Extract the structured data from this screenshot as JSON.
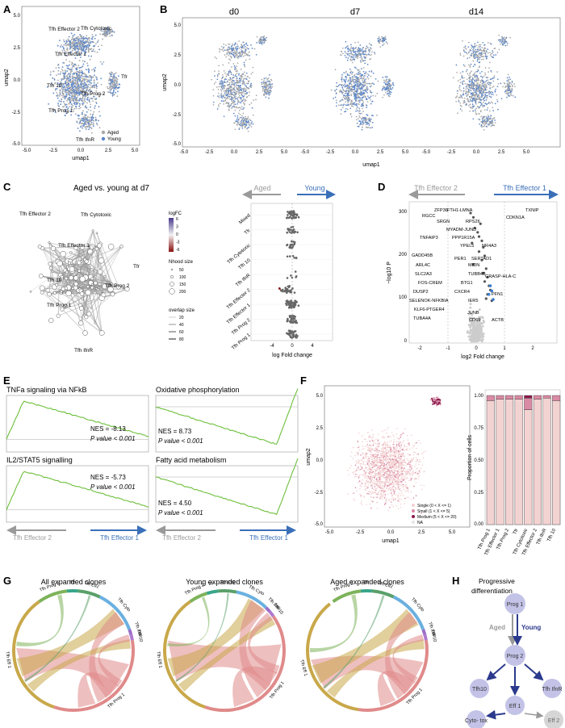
{
  "panels": {
    "A": {
      "letter": "A",
      "xlabel": "umap1",
      "ylabel": "umap2",
      "clusters": [
        "Tfh Effector 2",
        "Tfh Cytotoxic",
        "Tfh Effector 1",
        "Tfr",
        "Tfh 10",
        "Tfh Prog 2",
        "Tfh Prog 1",
        "Tfh IfnR"
      ],
      "legend": [
        {
          "label": "Aged",
          "color": "#a7a7a7"
        },
        {
          "label": "Young",
          "color": "#5b86c9"
        }
      ],
      "xticks": [
        "-5.0",
        "-2.5",
        "0.0",
        "2.5",
        "5.0"
      ],
      "yticks": [
        "5.0",
        "2.5",
        "0.0",
        "-2.5",
        "-5.0"
      ]
    },
    "B": {
      "letter": "B",
      "titles": [
        "d0",
        "d7",
        "d14"
      ],
      "xlabel": "umap1",
      "ylabel": "umap2",
      "xticks": [
        "-5.0",
        "-2.5",
        "0.0",
        "2.5",
        "5.0"
      ],
      "yticks": [
        "5.0",
        "2.5",
        "0.0",
        "-2.5",
        "-5.0"
      ]
    },
    "C": {
      "letter": "C",
      "title": "Aged vs. young at d7",
      "clusters": [
        "Tfh Effector 2",
        "Tfh Cytotoxic",
        "Tfh Effector 1",
        "Tfr",
        "Tfh 10",
        "Tfh Prog 2",
        "Tfh Prog 1",
        "Tfh IfnR"
      ],
      "legend_logfc_title": "logFC",
      "logfc_ticks": [
        "6",
        "3",
        "0",
        "-3",
        "-6"
      ],
      "nhood_title": "Nhood size",
      "nhood_ticks": [
        "50",
        "100",
        "150",
        "200"
      ],
      "overlap_title": "overlap size",
      "overlap_ticks": [
        "20",
        "40",
        "60",
        "80"
      ],
      "arrow_aged": "Aged",
      "arrow_young": "Young",
      "beeswarm_rows": [
        "Mixed",
        "Tfr",
        "Tfh Cytotoxic",
        "Tfh 10",
        "Tfh IfnR",
        "Tfh Effector 2",
        "Tfh Effector 1",
        "Tfh Prog 2",
        "Tfh Prog 1"
      ],
      "beeswarm_xticks": [
        "-4",
        "0",
        "4"
      ],
      "beeswarm_xlabel": "log Fold change"
    },
    "D": {
      "letter": "D",
      "arrow_left": "Tfh Effector 2",
      "arrow_right": "Tfh Effector 1",
      "xlabel": "log2 Fold change",
      "ylabel": "−log10 P",
      "xticks": [
        "-2",
        "-1",
        "0",
        "1",
        "2"
      ],
      "yticks": [
        "300",
        "200",
        "100",
        "0"
      ],
      "genes": [
        "TXNIP",
        "ZFP36",
        "FTH1-LMNA",
        "CDKN1A",
        "RGCC",
        "SRGN",
        "RPS26",
        "MYADM-JUND",
        "TNFAIP3",
        "PPP1R15A",
        "YPEL5",
        "NR4A3",
        "GADD45B",
        "PER1",
        "SERTAD1",
        "ARL4C",
        "MIDN",
        "SLC2A3",
        "TUBB4B",
        "FOS-CREM",
        "BTG1",
        "GRASP-HLA-C",
        "DUSP2",
        "CXCR4",
        "SELENOK-NFKBIA",
        "KLF6-PTGER4",
        "IER5",
        "PFN1",
        "TUBA4A",
        "JUNB",
        "CD69",
        "ACTB"
      ]
    },
    "E": {
      "letter": "E",
      "left_arrow": "Tfh Effector 2",
      "right_arrow": "Tfh Effector 1",
      "plots": [
        {
          "title": "TNFa signaling via NFkB",
          "nes": "NES = -8.13",
          "p": "P value < 0.001"
        },
        {
          "title": "Oxidative phosphorylation",
          "nes": "NES = 8.73",
          "p": "P value < 0.001"
        },
        {
          "title": "IL2/STAT5 signalling",
          "nes": "NES = -5.73",
          "p": "P value < 0.001"
        },
        {
          "title": "Fatty acid metabolism",
          "nes": "NES = 4.50",
          "p": "P value < 0.001"
        }
      ]
    },
    "F": {
      "letter": "F",
      "xlabel": "umap1",
      "ylabel": "umap2",
      "bar_ylabel": "Proportion of cells",
      "xticks": [
        "-5.0",
        "-2.5",
        "0.0",
        "2.5",
        "5.0"
      ],
      "yticks": [
        "5.0",
        "2.5",
        "0.0",
        "-2.5",
        "-5.0"
      ],
      "bar_yticks": [
        "1.00",
        "0.75",
        "0.50",
        "0.25",
        "0.00"
      ],
      "bar_categories": [
        "Tfh Prog 1",
        "Tfh Effector 1",
        "Tfh Prog 2",
        "Tfr",
        "Tfh Cytotoxic",
        "Tfh Effector 2",
        "Tfh IfnR",
        "Tfh 10"
      ],
      "legend": [
        {
          "label": "Single (0 < X <= 1)",
          "color": "#f3d2d2"
        },
        {
          "label": "Small (1 < X <= 5)",
          "color": "#d98aa4"
        },
        {
          "label": "Medium (5 < X <= 20)",
          "color": "#8a1a4e"
        },
        {
          "label": "NA",
          "color": "#e6e6e6"
        }
      ]
    },
    "G": {
      "letter": "G",
      "titles": [
        "All expanded clones",
        "Young expanded clones",
        "Aged expanded clones"
      ],
      "segments": [
        "Tfh Prog 2",
        "Tfr",
        "Tfh Eff2",
        "Tfh Cyto",
        "Tfh IfnR",
        "Tfh 10",
        "Tfh Prog 1",
        "Tfh Eff 1"
      ]
    },
    "H": {
      "letter": "H",
      "title": "Progressive differentiation",
      "aged": "Aged",
      "young": "Young",
      "nodes": [
        "Prog 1",
        "Prog 2",
        "Tfh10",
        "Tfh IfnR",
        "Eff 1",
        "Cyto- tox",
        "Eff 2"
      ]
    }
  },
  "chart_data": [
    {
      "type": "bar",
      "panel": "F",
      "categories": [
        "Tfh Prog 1",
        "Tfh Effector 1",
        "Tfh Prog 2",
        "Tfr",
        "Tfh Cytotoxic",
        "Tfh Effector 2",
        "Tfh IfnR",
        "Tfh 10"
      ],
      "ylim": [
        0,
        1
      ],
      "ylabel": "Proportion of cells",
      "series": [
        {
          "name": "Single (0 < X <= 1)",
          "values": [
            0.96,
            0.97,
            0.97,
            0.97,
            0.89,
            0.97,
            0.98,
            0.96
          ]
        },
        {
          "name": "Small (1 < X <= 5)",
          "values": [
            0.04,
            0.03,
            0.03,
            0.03,
            0.09,
            0.03,
            0.02,
            0.04
          ]
        },
        {
          "name": "Medium (5 < X <= 20)",
          "values": [
            0.0,
            0.0,
            0.0,
            0.0,
            0.02,
            0.0,
            0.0,
            0.0
          ]
        }
      ]
    },
    {
      "type": "scatter",
      "panel": "D",
      "xlabel": "log2 Fold change",
      "ylabel": "−log10 P",
      "xlim": [
        -3,
        3
      ],
      "ylim": [
        0,
        320
      ],
      "labeled_points": [
        {
          "label": "TXNIP",
          "x": 0.95,
          "y": 305
        },
        {
          "label": "CDKN1A",
          "x": 0.75,
          "y": 300
        },
        {
          "label": "ACTB",
          "x": 0.55,
          "y": 95
        }
      ]
    },
    {
      "type": "line",
      "panel": "E",
      "series": [
        {
          "name": "TNFa signaling via NFkB",
          "shape": "rise-then-fall",
          "nes": -8.13
        },
        {
          "name": "Oxidative phosphorylation",
          "shape": "fall-then-rise",
          "nes": 8.73
        },
        {
          "name": "IL2/STAT5 signalling",
          "shape": "rise-then-fall",
          "nes": -5.73
        },
        {
          "name": "Fatty acid metabolism",
          "shape": "fall-then-rise",
          "nes": 4.5
        }
      ]
    }
  ]
}
